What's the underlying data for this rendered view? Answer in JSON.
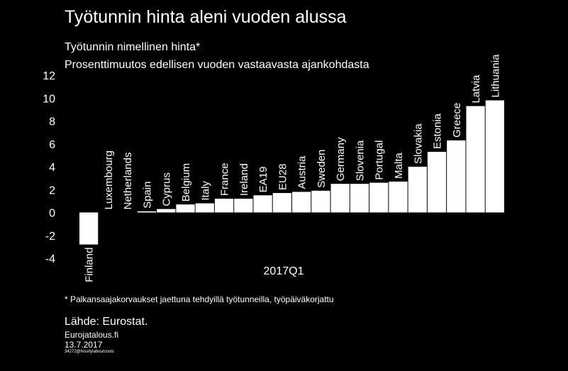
{
  "header": {
    "title": "Työtunnin hinta aleni vuoden alussa",
    "subtitle1": "Työtunnin nimellinen hinta*",
    "subtitle2": "Prosenttimuutos edellisen vuoden vastaavasta ajankohdasta"
  },
  "chart_data": {
    "type": "bar",
    "categories": [
      "Finland",
      "Luxembourg",
      "Netherlands",
      "Spain",
      "Cyprus",
      "Belgium",
      "Italy",
      "France",
      "Ireland",
      "EA19",
      "EU28",
      "Austria",
      "Sweden",
      "Germany",
      "Slovenia",
      "Portugal",
      "Malta",
      "Slovakia",
      "Estonia",
      "Greece",
      "Latvia",
      "Lithuania"
    ],
    "values": [
      -2.8,
      0.0,
      0.0,
      0.1,
      0.3,
      0.7,
      0.8,
      1.2,
      1.2,
      1.5,
      1.7,
      1.8,
      1.9,
      2.5,
      2.5,
      2.6,
      2.7,
      4.0,
      5.3,
      6.3,
      9.3,
      9.8
    ],
    "xlabel": "2017Q1",
    "ylim": [
      -4,
      12
    ],
    "yticks": [
      -4,
      -2,
      0,
      2,
      4,
      6,
      8,
      10,
      12
    ],
    "grid": false,
    "bar_color": "#ffffff",
    "background": "#000000"
  },
  "footer": {
    "footnote": "* Palkansaajakorvaukset jaettuna tehdyillä työtunneilla, työpäiväkorjattu",
    "source": "Lähde: Eurostat.",
    "site": "Eurojatalous.fi",
    "date": "13.7.2017",
    "code": "34272@hourlylabourcosts"
  }
}
